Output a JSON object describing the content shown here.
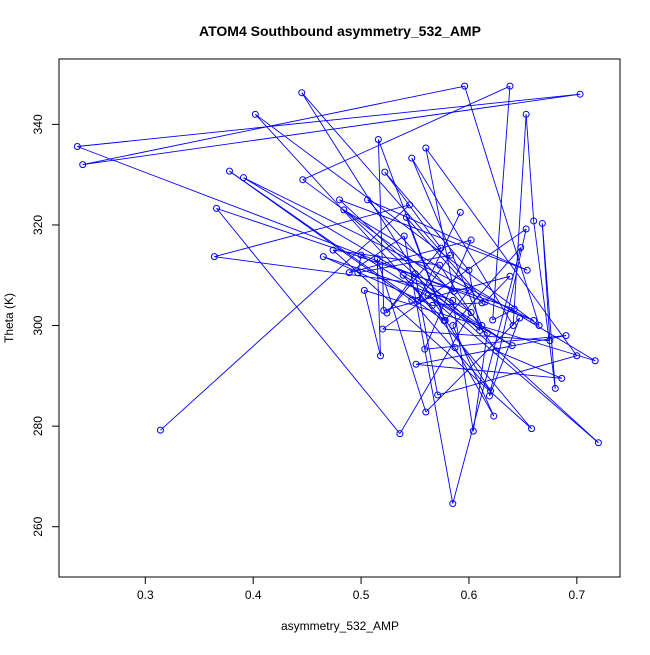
{
  "chart_data": {
    "type": "line",
    "title": "ATOM4 Southbound asymmetry_532_AMP",
    "xlabel": "asymmetry_532_AMP",
    "ylabel": "Theta (K)",
    "xlim": [
      0.22,
      0.74
    ],
    "ylim": [
      250,
      353
    ],
    "x_ticks": [
      0.3,
      0.4,
      0.5,
      0.6,
      0.7
    ],
    "x_tick_labels": [
      "0.3",
      "0.4",
      "0.5",
      "0.6",
      "0.7"
    ],
    "y_ticks": [
      260,
      280,
      300,
      320,
      340
    ],
    "y_tick_labels": [
      "260",
      "280",
      "300",
      "320",
      "340"
    ],
    "grid": false,
    "legend": "none",
    "series": [
      {
        "color": "#0000ff",
        "marker": "open-circle",
        "points": [
          [
            0.314,
            279.2
          ],
          [
            0.545,
            324.0
          ],
          [
            0.364,
            313.7
          ],
          [
            0.6,
            307.0
          ],
          [
            0.578,
            301.0
          ],
          [
            0.516,
            337.0
          ],
          [
            0.521,
            303.0
          ],
          [
            0.638,
            309.8
          ],
          [
            0.615,
            304.7
          ],
          [
            0.445,
            346.3
          ],
          [
            0.62,
            287.0
          ],
          [
            0.547,
            305.0
          ],
          [
            0.378,
            330.7
          ],
          [
            0.577,
            301.0
          ],
          [
            0.402,
            342.0
          ],
          [
            0.665,
            300.0
          ],
          [
            0.596,
            347.6
          ],
          [
            0.242,
            332.0
          ],
          [
            0.703,
            346.0
          ],
          [
            0.237,
            335.6
          ],
          [
            0.66,
            301.0
          ],
          [
            0.391,
            329.4
          ],
          [
            0.602,
            302.6
          ],
          [
            0.536,
            278.5
          ],
          [
            0.366,
            323.3
          ],
          [
            0.642,
            303.3
          ],
          [
            0.622,
            301.1
          ],
          [
            0.638,
            347.6
          ],
          [
            0.446,
            329.0
          ],
          [
            0.586,
            306.8
          ],
          [
            0.56,
            335.3
          ],
          [
            0.7,
            294.0
          ],
          [
            0.571,
            286.2
          ],
          [
            0.55,
            310.3
          ],
          [
            0.524,
            302.5
          ],
          [
            0.574,
            315.4
          ],
          [
            0.522,
            330.5
          ],
          [
            0.6,
            311.0
          ],
          [
            0.61,
            299.0
          ],
          [
            0.48,
            325.0
          ],
          [
            0.654,
            311.0
          ],
          [
            0.506,
            325.0
          ],
          [
            0.612,
            300.0
          ],
          [
            0.547,
            333.3
          ],
          [
            0.641,
            300.0
          ],
          [
            0.653,
            342.0
          ],
          [
            0.66,
            320.8
          ],
          [
            0.68,
            287.5
          ],
          [
            0.668,
            320.3
          ],
          [
            0.675,
            297.0
          ],
          [
            0.52,
            299.3
          ],
          [
            0.653,
            319.2
          ],
          [
            0.619,
            286.0
          ],
          [
            0.647,
            301.5
          ],
          [
            0.56,
            282.8
          ],
          [
            0.515,
            313.3
          ],
          [
            0.518,
            294.0
          ],
          [
            0.503,
            307.0
          ],
          [
            0.717,
            293.0
          ],
          [
            0.484,
            323.0
          ],
          [
            0.72,
            276.7
          ],
          [
            0.562,
            306.0
          ],
          [
            0.64,
            296.0
          ],
          [
            0.539,
            310.0
          ],
          [
            0.658,
            279.5
          ],
          [
            0.474,
            315.0
          ],
          [
            0.573,
            312.0
          ],
          [
            0.625,
            295.0
          ],
          [
            0.686,
            289.5
          ],
          [
            0.551,
            292.3
          ],
          [
            0.69,
            298.0
          ],
          [
            0.559,
            295.3
          ],
          [
            0.602,
            317.0
          ],
          [
            0.489,
            310.5
          ],
          [
            0.54,
            317.8
          ],
          [
            0.585,
            264.6
          ],
          [
            0.648,
            315.5
          ],
          [
            0.585,
            300.0
          ],
          [
            0.623,
            282.0
          ],
          [
            0.587,
            295.6
          ],
          [
            0.542,
            321.5
          ],
          [
            0.612,
            304.5
          ],
          [
            0.566,
            304.0
          ],
          [
            0.465,
            313.7
          ],
          [
            0.585,
            305.0
          ],
          [
            0.604,
            279.0
          ],
          [
            0.617,
            298.5
          ],
          [
            0.5,
            314.0
          ],
          [
            0.497,
            310.5
          ],
          [
            0.583,
            314.0
          ],
          [
            0.553,
            305.0
          ],
          [
            0.592,
            322.5
          ]
        ]
      }
    ]
  }
}
